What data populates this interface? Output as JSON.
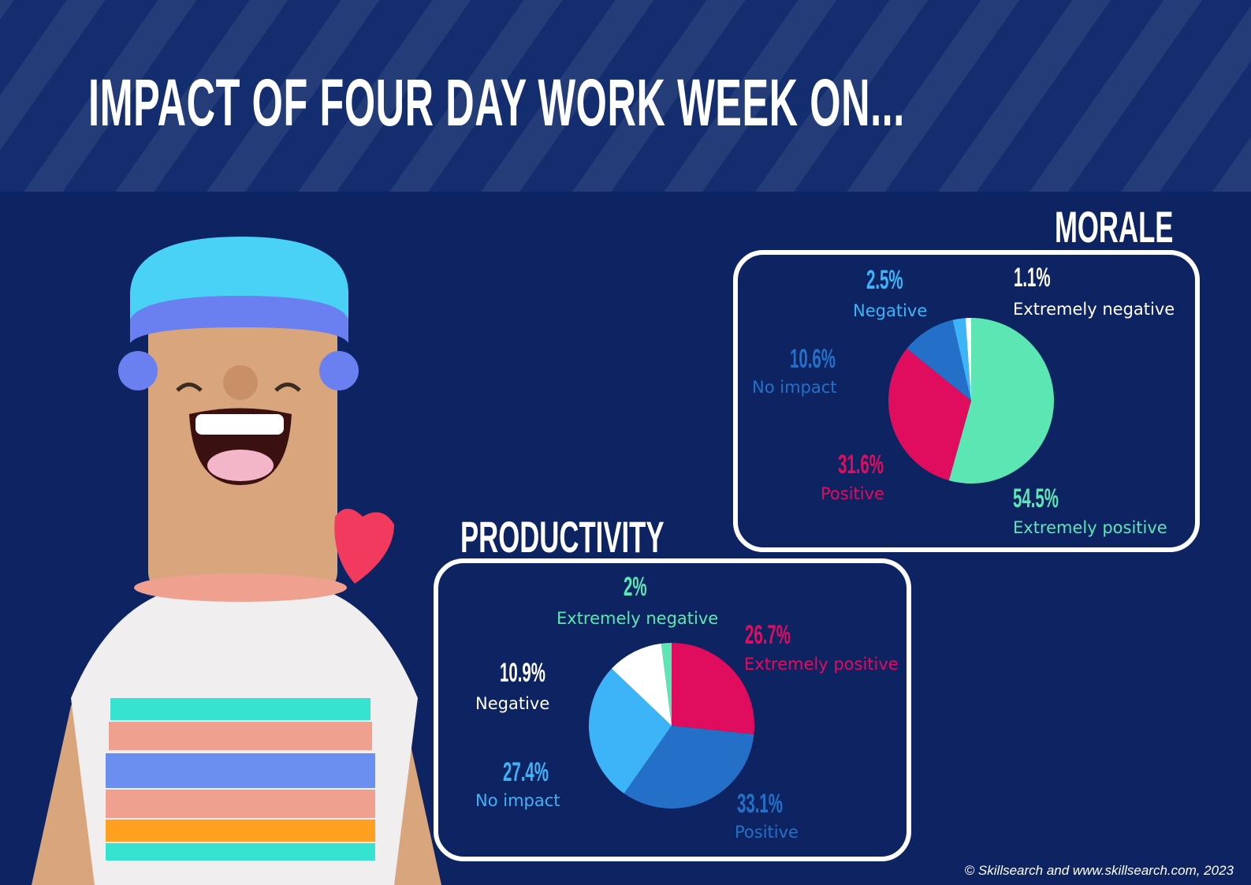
{
  "title": "IMPACT OF FOUR DAY WORK WEEK ON...",
  "credit": "© Skillsearch and www.skillsearch.com, 2023",
  "colors": {
    "background": "#0e2462",
    "green": "#5ce6b4",
    "red": "#e00c5e",
    "blue": "#2470c8",
    "light_blue": "#3db4f8",
    "white": "#ffffff"
  },
  "chart_data": [
    {
      "type": "pie",
      "title": "MORALE",
      "slices": [
        {
          "label": "Extremely positive",
          "value": 54.5,
          "display": "54.5%",
          "color": "#5ce6b4"
        },
        {
          "label": "Positive",
          "value": 31.6,
          "display": "31.6%",
          "color": "#e00c5e"
        },
        {
          "label": "No impact",
          "value": 10.6,
          "display": "10.6%",
          "color": "#2470c8"
        },
        {
          "label": "Negative",
          "value": 2.5,
          "display": "2.5%",
          "color": "#3db4f8"
        },
        {
          "label": "Extremely negative",
          "value": 1.1,
          "display": "1.1%",
          "color": "#ffffff"
        }
      ]
    },
    {
      "type": "pie",
      "title": "PRODUCTIVITY",
      "slices": [
        {
          "label": "Extremely positive",
          "value": 26.7,
          "display": "26.7%",
          "color": "#e00c5e"
        },
        {
          "label": "Positive",
          "value": 33.1,
          "display": "33.1%",
          "color": "#2470c8"
        },
        {
          "label": "No impact",
          "value": 27.4,
          "display": "27.4%",
          "color": "#3db4f8"
        },
        {
          "label": "Negative",
          "value": 10.9,
          "display": "10.9%",
          "color": "#ffffff"
        },
        {
          "label": "Extremely negative",
          "value": 2,
          "display": "2%",
          "color": "#5ce6b4"
        }
      ]
    }
  ]
}
